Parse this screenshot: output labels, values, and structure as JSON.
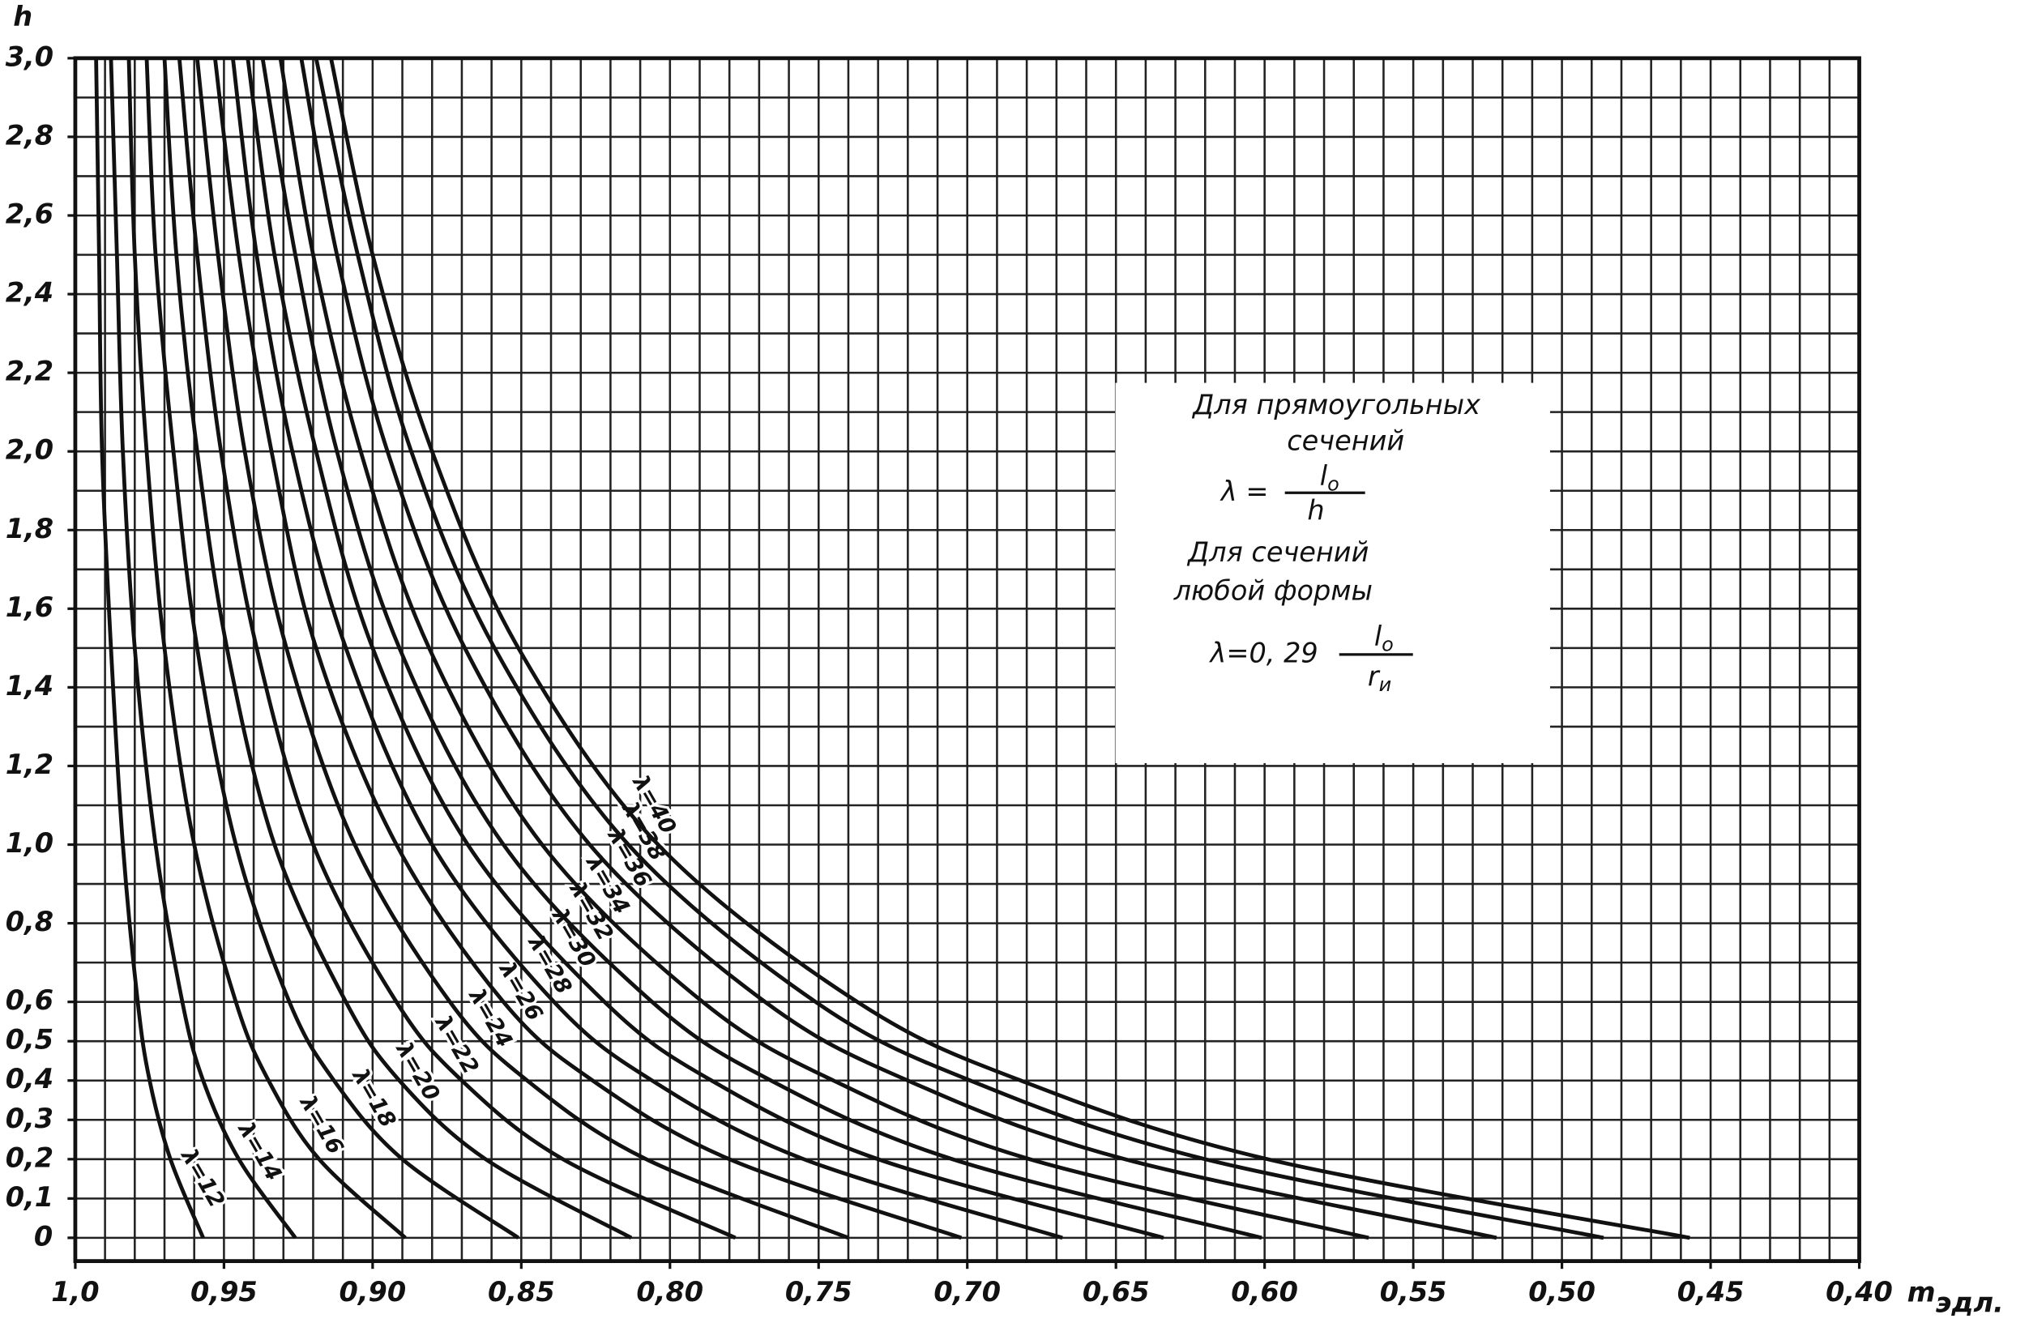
{
  "chart_data": {
    "type": "line",
    "ylabel": "h",
    "xlabel": "m",
    "xlabel_sub": "эдл.",
    "xlim": [
      1.0,
      0.4
    ],
    "ylim": [
      0,
      3.0
    ],
    "xticks": [
      {
        "value": 1.0,
        "label": "1,0"
      },
      {
        "value": 0.95,
        "label": "0,95"
      },
      {
        "value": 0.9,
        "label": "0,90"
      },
      {
        "value": 0.85,
        "label": "0,85"
      },
      {
        "value": 0.8,
        "label": "0,80"
      },
      {
        "value": 0.75,
        "label": "0,75"
      },
      {
        "value": 0.7,
        "label": "0,70"
      },
      {
        "value": 0.65,
        "label": "0,65"
      },
      {
        "value": 0.6,
        "label": "0,60"
      },
      {
        "value": 0.55,
        "label": "0,55"
      },
      {
        "value": 0.5,
        "label": "0,50"
      },
      {
        "value": 0.45,
        "label": "0,45"
      },
      {
        "value": 0.4,
        "label": "0,40"
      }
    ],
    "yticks": [
      0,
      {
        "value": 0.1,
        "label": "0,1"
      },
      {
        "value": 0.2,
        "label": "0,2"
      },
      {
        "value": 0.3,
        "label": "0,3"
      },
      {
        "value": 0.4,
        "label": "0,4"
      },
      {
        "value": 0.5,
        "label": "0,5"
      },
      {
        "value": 0.6,
        "label": "0,6"
      },
      {
        "value": 0.8,
        "label": "0,8"
      },
      {
        "value": 1.0,
        "label": "1,0"
      },
      {
        "value": 1.2,
        "label": "1,2"
      },
      {
        "value": 1.4,
        "label": "1,4"
      },
      {
        "value": 1.6,
        "label": "1,6"
      },
      {
        "value": 1.8,
        "label": "1,8"
      },
      {
        "value": 2.0,
        "label": "2,0"
      },
      {
        "value": 2.2,
        "label": "2,2"
      },
      {
        "value": 2.4,
        "label": "2,4"
      },
      {
        "value": 2.6,
        "label": "2,6"
      },
      {
        "value": 2.8,
        "label": "2,8"
      },
      {
        "value": 3.0,
        "label": "3,0"
      }
    ],
    "xgrid_step": 0.01,
    "ygrid_step": 0.1,
    "grid": true,
    "color": "#111111",
    "y": [
      0,
      0.2,
      0.4,
      0.6,
      1.0,
      1.5,
      2.0,
      2.5,
      3.0
    ],
    "series": [
      {
        "name": "λ=12",
        "x": [
          0.957,
          0.968,
          0.975,
          0.979,
          0.984,
          0.988,
          0.991,
          0.992,
          0.993
        ]
      },
      {
        "name": "λ=14",
        "x": [
          0.926,
          0.945,
          0.957,
          0.964,
          0.973,
          0.98,
          0.984,
          0.986,
          0.988
        ]
      },
      {
        "name": "λ=16",
        "x": [
          0.889,
          0.918,
          0.935,
          0.946,
          0.96,
          0.97,
          0.976,
          0.98,
          0.982
        ]
      },
      {
        "name": "λ=18",
        "x": [
          0.851,
          0.89,
          0.913,
          0.928,
          0.946,
          0.959,
          0.967,
          0.973,
          0.976
        ]
      },
      {
        "name": "λ=20",
        "x": [
          0.813,
          0.862,
          0.891,
          0.909,
          0.933,
          0.949,
          0.959,
          0.966,
          0.97
        ]
      },
      {
        "name": "λ=22",
        "x": [
          0.778,
          0.836,
          0.87,
          0.892,
          0.92,
          0.939,
          0.951,
          0.959,
          0.965
        ]
      },
      {
        "name": "λ=24",
        "x": [
          0.74,
          0.808,
          0.848,
          0.874,
          0.906,
          0.929,
          0.943,
          0.952,
          0.959
        ]
      },
      {
        "name": "λ=26",
        "x": [
          0.702,
          0.78,
          0.826,
          0.856,
          0.892,
          0.919,
          0.934,
          0.945,
          0.953
        ]
      },
      {
        "name": "λ=28",
        "x": [
          0.668,
          0.755,
          0.806,
          0.839,
          0.88,
          0.909,
          0.927,
          0.939,
          0.947
        ]
      },
      {
        "name": "λ=30",
        "x": [
          0.634,
          0.73,
          0.786,
          0.822,
          0.868,
          0.9,
          0.919,
          0.933,
          0.942
        ]
      },
      {
        "name": "λ=32",
        "x": [
          0.601,
          0.705,
          0.766,
          0.806,
          0.856,
          0.891,
          0.912,
          0.926,
          0.937
        ]
      },
      {
        "name": "λ=34",
        "x": [
          0.565,
          0.679,
          0.745,
          0.789,
          0.843,
          0.881,
          0.904,
          0.92,
          0.931
        ]
      },
      {
        "name": "λ=36",
        "x": [
          0.522,
          0.647,
          0.72,
          0.768,
          0.827,
          0.869,
          0.895,
          0.912,
          0.924
        ]
      },
      {
        "name": "λ=38",
        "x": [
          0.486,
          0.62,
          0.699,
          0.751,
          0.814,
          0.859,
          0.887,
          0.905,
          0.919
        ]
      },
      {
        "name": "λ=40",
        "x": [
          0.457,
          0.599,
          0.682,
          0.737,
          0.804,
          0.851,
          0.88,
          0.9,
          0.914
        ]
      }
    ],
    "note": {
      "line1": "Для прямоугольных",
      "line2": "сечений",
      "formula1_lhs": "λ =",
      "formula1_num": "l",
      "formula1_num_sub": "o",
      "formula1_den": "h",
      "line3": "Для сечений",
      "line4": "любой формы",
      "formula2_lhs": "λ=0, 29",
      "formula2_num": "l",
      "formula2_num_sub": "o",
      "formula2_den": "r",
      "formula2_den_sub": "и"
    }
  }
}
